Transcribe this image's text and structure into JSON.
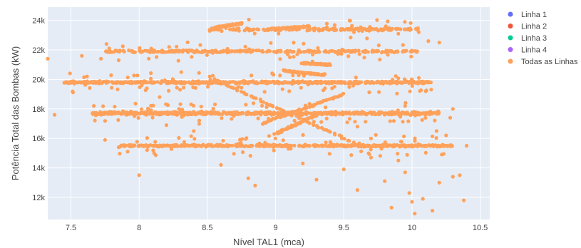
{
  "chart_data": {
    "type": "scatter",
    "xlabel": "Nível TAL1 (mca)",
    "ylabel": "Potência Total das Bombas (kW)",
    "xlim": [
      7.33,
      10.57
    ],
    "ylim": [
      10500,
      24900
    ],
    "x_ticks": [
      7.5,
      8,
      8.5,
      9,
      9.5,
      10,
      10.5
    ],
    "x_tick_labels": [
      "7.5",
      "8",
      "8.5",
      "9",
      "9.5",
      "10",
      "10.5"
    ],
    "y_ticks": [
      12000,
      14000,
      16000,
      18000,
      20000,
      22000,
      24000
    ],
    "y_tick_labels": [
      "12k",
      "14k",
      "16k",
      "18k",
      "20k",
      "22k",
      "24k"
    ],
    "grid": true,
    "legend_position": "right",
    "series": [
      {
        "name": "Linha 1",
        "color": "#636efa",
        "x": [],
        "y": []
      },
      {
        "name": "Linha 2",
        "color": "#ef553b",
        "x": [],
        "y": []
      },
      {
        "name": "Linha 3",
        "color": "#00cc96",
        "x": [],
        "y": []
      },
      {
        "name": "Linha 4",
        "color": "#ab63fa",
        "x": [],
        "y": []
      },
      {
        "name": "Todas as Linhas",
        "color": "#ffa15a",
        "bands": [
          {
            "y": 15500,
            "x0": 7.85,
            "x1": 10.3,
            "spread": 90,
            "count": 520
          },
          {
            "y": 17700,
            "x0": 7.65,
            "x1": 10.2,
            "spread": 140,
            "count": 700
          },
          {
            "y": 19800,
            "x0": 7.45,
            "x1": 10.15,
            "spread": 120,
            "count": 560
          },
          {
            "y": 21900,
            "x0": 7.75,
            "x1": 10.05,
            "spread": 110,
            "count": 320
          },
          {
            "y": 23400,
            "x0": 8.5,
            "x1": 10.05,
            "spread": 150,
            "count": 200
          }
        ],
        "segments": [
          {
            "x0": 8.55,
            "y0": 23500,
            "x1": 8.75,
            "y1": 23800
          },
          {
            "x0": 8.95,
            "y0": 23400,
            "x1": 9.25,
            "y1": 23600
          },
          {
            "x0": 8.55,
            "y0": 20000,
            "x1": 9.6,
            "y1": 15600
          },
          {
            "x0": 8.9,
            "y0": 17000,
            "x1": 9.5,
            "y1": 19000
          },
          {
            "x0": 9.0,
            "y0": 16300,
            "x1": 9.3,
            "y1": 17600
          },
          {
            "x0": 9.05,
            "y0": 20600,
            "x1": 9.35,
            "y1": 20300
          },
          {
            "x0": 9.2,
            "y0": 21100,
            "x1": 9.4,
            "y1": 21000
          }
        ],
        "points": [
          [
            7.33,
            21400
          ],
          [
            7.38,
            17600
          ],
          [
            7.5,
            19800
          ],
          [
            7.58,
            21600
          ],
          [
            7.72,
            21400
          ],
          [
            7.78,
            22100
          ],
          [
            7.85,
            21300
          ],
          [
            7.75,
            15900
          ],
          [
            7.85,
            15400
          ],
          [
            8.0,
            13500
          ],
          [
            8.08,
            21900
          ],
          [
            8.22,
            22200
          ],
          [
            8.6,
            14200
          ],
          [
            8.85,
            12800
          ],
          [
            8.8,
            13300
          ],
          [
            9.3,
            13200
          ],
          [
            9.6,
            12500
          ],
          [
            9.8,
            13100
          ],
          [
            9.85,
            11300
          ],
          [
            9.95,
            13700
          ],
          [
            9.98,
            12300
          ],
          [
            10.0,
            11700
          ],
          [
            10.02,
            10900
          ],
          [
            10.08,
            11900
          ],
          [
            10.15,
            11100
          ],
          [
            10.2,
            13000
          ],
          [
            10.3,
            13400
          ],
          [
            10.35,
            13500
          ],
          [
            10.38,
            11800
          ],
          [
            10.4,
            15500
          ],
          [
            10.25,
            16200
          ],
          [
            10.28,
            17400
          ],
          [
            10.3,
            18000
          ],
          [
            10.18,
            16500
          ],
          [
            10.12,
            22600
          ],
          [
            10.2,
            22500
          ],
          [
            9.9,
            14500
          ],
          [
            9.7,
            14700
          ],
          [
            9.5,
            13900
          ],
          [
            9.2,
            14300
          ],
          [
            10.05,
            20100
          ],
          [
            10.1,
            19200
          ],
          [
            9.9,
            23100
          ],
          [
            10.05,
            23200
          ],
          [
            8.4,
            16500
          ],
          [
            8.2,
            16900
          ],
          [
            8.15,
            18800
          ],
          [
            8.3,
            19300
          ],
          [
            9.1,
            19200
          ],
          [
            9.6,
            16800
          ]
        ]
      }
    ]
  }
}
